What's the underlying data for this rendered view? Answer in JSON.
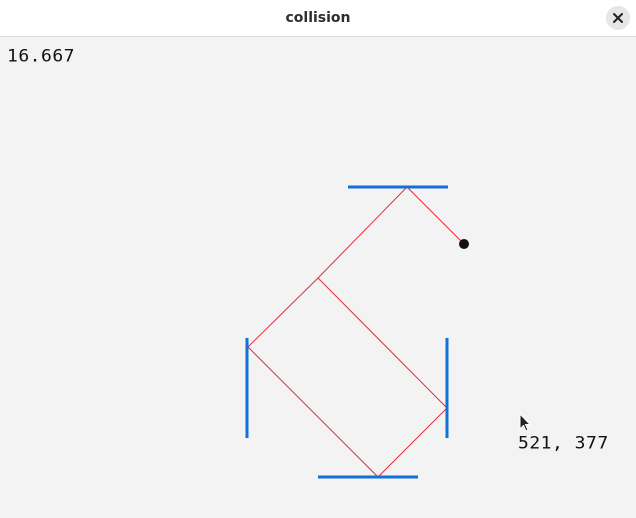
{
  "window": {
    "title": "collision",
    "close_icon": "close-icon"
  },
  "hud": {
    "frame_time": "16.667",
    "mouse_coords": "521, 377"
  },
  "scene": {
    "paddle_color": "#1271d6",
    "trace_color": "#e0303a",
    "ball_color": "#111111",
    "paddles": [
      "top-paddle",
      "left-paddle",
      "right-paddle",
      "bottom-paddle"
    ],
    "cursor_icon": "arrow-cursor-icon"
  }
}
